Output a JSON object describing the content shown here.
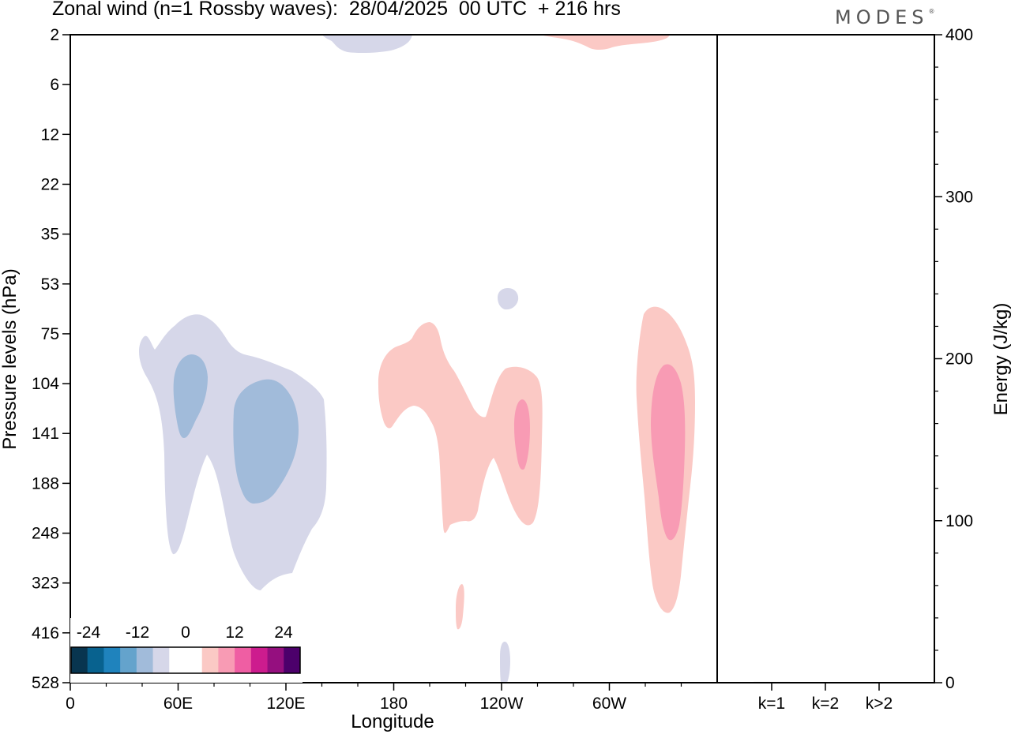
{
  "title": "Zonal wind (n=1 Rossby waves):  28/04/2025  00 UTC  + 216 hrs",
  "brand": "MODES",
  "chart_data": [
    {
      "type": "heatmap",
      "xlabel": "Longitude",
      "ylabel": "Pressure levels (hPa)",
      "x_ticks": [
        "0",
        "60E",
        "120E",
        "180",
        "120W",
        "60W"
      ],
      "x_tick_degrees": [
        0,
        60,
        120,
        180,
        240,
        300
      ],
      "xlim": [
        0,
        360
      ],
      "y_ticks": [
        "2",
        "6",
        "12",
        "22",
        "35",
        "53",
        "75",
        "104",
        "141",
        "188",
        "248",
        "323",
        "416",
        "528"
      ],
      "y_scale": "pressure levels, top 2 hPa to bottom 528 hPa, equally spaced labels",
      "colorbar": {
        "labels": [
          "-24",
          "-12",
          "0",
          "12",
          "24"
        ],
        "colors": [
          "#08354f",
          "#08628f",
          "#1f83bd",
          "#64a3cc",
          "#a1bbda",
          "#d6d7e9",
          "#ffffff",
          "#ffffff",
          "#fbc9c5",
          "#f89bb4",
          "#ef5ea3",
          "#cd1c8e",
          "#950f7f",
          "#4c006b"
        ]
      },
      "features": [
        {
          "sign": "negative",
          "level": "-4 to 0",
          "color": "#d6d7e9",
          "region": "near 55E-135E, 75 to 323 hPa"
        },
        {
          "sign": "negative",
          "level": "-8 to -4",
          "color": "#a1bbda",
          "region": "near 60E-70E, 90 to 141 hPa"
        },
        {
          "sign": "negative",
          "level": "-8 to -4",
          "color": "#a1bbda",
          "region": "near 100E-125E, 104 to 210 hPa"
        },
        {
          "sign": "negative",
          "level": "-4 to 0",
          "color": "#d6d7e9",
          "region": "near 160E-190E, 2 to 5 hPa"
        },
        {
          "sign": "negative",
          "level": "-4 to 0",
          "color": "#d6d7e9",
          "region": "near 120W, 53 to 60 hPa"
        },
        {
          "sign": "negative",
          "level": "-4 to 0",
          "color": "#d6d7e9",
          "region": "near 120W, 450 to 528 hPa"
        },
        {
          "sign": "positive",
          "level": "0 to 4",
          "color": "#fbc9c5",
          "region": "near 175E-95W, 75 to 260 hPa"
        },
        {
          "sign": "positive",
          "level": "4 to 8",
          "color": "#f89bb4",
          "region": "near 115W, 120 to 175 hPa"
        },
        {
          "sign": "positive",
          "level": "0 to 4",
          "color": "#fbc9c5",
          "region": "near 35W-15W, 75 to 380 hPa"
        },
        {
          "sign": "positive",
          "level": "4 to 8",
          "color": "#f89bb4",
          "region": "near 25W, 100 to 260 hPa"
        },
        {
          "sign": "positive",
          "level": "0 to 4",
          "color": "#fbc9c5",
          "region": "near 85W-40W, 2 to 4 hPa"
        },
        {
          "sign": "positive",
          "level": "0 to 4",
          "color": "#fbc9c5",
          "region": "near 130W, 340 to 410 hPa"
        }
      ]
    },
    {
      "type": "bar",
      "ylabel": "Energy (J/kg)",
      "categories": [
        "k=1",
        "k=2",
        "k>2"
      ],
      "values": [
        0.5,
        0.1,
        0.3
      ],
      "ylim": [
        0,
        400
      ],
      "y_ticks": [
        "0",
        "100",
        "200",
        "300",
        "400"
      ]
    }
  ]
}
